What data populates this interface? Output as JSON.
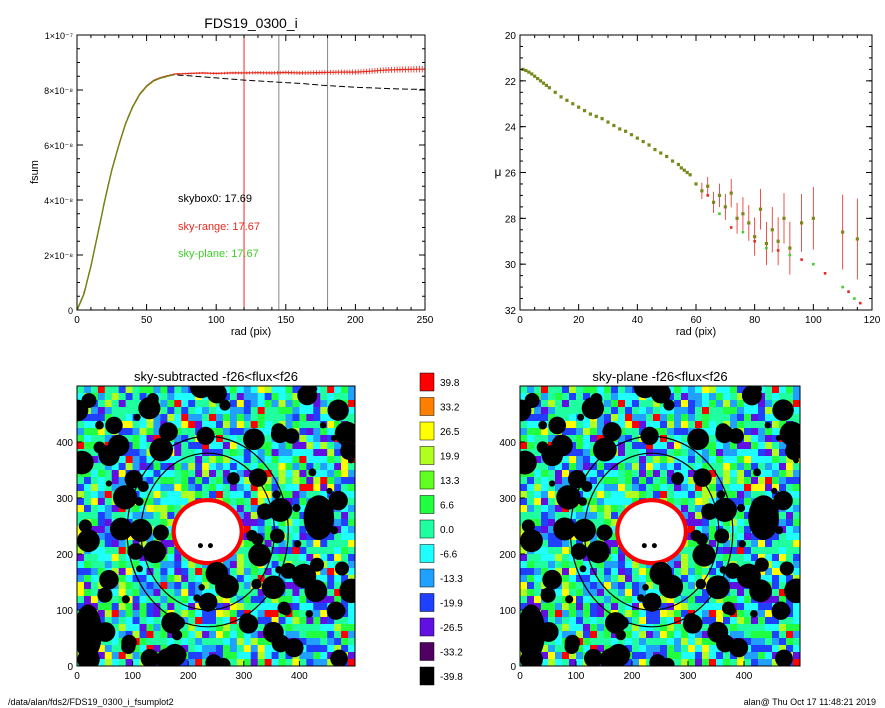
{
  "footer": {
    "path": "/data/alan/fds2/FDS19_0300_i_fsumplot2",
    "stamp": "alan@  Thu Oct 17 11:48:21 2019"
  },
  "colors": {
    "black_curve": "#000000",
    "red_curve": "#e8281e",
    "green_curve": "#3fcf28",
    "sky_lines_red": "#e8281e",
    "sky_lines_gray": "#888888",
    "mask": "#000000"
  },
  "chart_data": [
    {
      "type": "line",
      "title": "FDS19_0300_i",
      "xlabel": "rad (pix)",
      "ylabel": "fsum",
      "xlim": [
        0,
        250
      ],
      "ylim": [
        0,
        1e-07
      ],
      "xticks": [
        "0",
        "50",
        "100",
        "150",
        "200",
        "250"
      ],
      "yticks": [
        "0",
        "2×10⁻⁸",
        "4×10⁻⁸",
        "6×10⁻⁸",
        "8×10⁻⁸",
        "1×10⁻⁷"
      ],
      "vertical_lines": [
        120,
        145,
        180
      ],
      "annotations": [
        {
          "text": "skybox0: 17.69",
          "color": "#000000"
        },
        {
          "text": "sky-range: 17.67",
          "color": "#e8281e"
        },
        {
          "text": "sky-plane: 17.67",
          "color": "#3fcf28"
        }
      ],
      "series": [
        {
          "x": [
            0,
            5,
            10,
            15,
            20,
            25,
            30,
            35,
            40,
            45,
            50,
            55,
            60,
            65,
            70,
            80,
            90,
            100,
            110,
            120,
            130,
            140,
            150,
            160,
            170,
            180,
            190,
            200,
            210,
            220,
            230,
            240,
            250
          ],
          "values": [
            0,
            6e-09,
            1.6e-08,
            2.8e-08,
            4e-08,
            5.1e-08,
            6e-08,
            6.8e-08,
            7.4e-08,
            7.85e-08,
            8.15e-08,
            8.35e-08,
            8.45e-08,
            8.52e-08,
            8.55e-08,
            8.52e-08,
            8.48e-08,
            8.44e-08,
            8.4e-08,
            8.36e-08,
            8.33e-08,
            8.3e-08,
            8.27e-08,
            8.24e-08,
            8.2e-08,
            8.16e-08,
            8.13e-08,
            8.1e-08,
            8.08e-08,
            8.06e-08,
            8.04e-08,
            8.03e-08,
            8.02e-08
          ]
        },
        {
          "x": [
            0,
            5,
            10,
            15,
            20,
            25,
            30,
            35,
            40,
            45,
            50,
            55,
            60,
            65,
            70,
            80,
            90,
            100,
            110,
            120,
            130,
            140,
            150,
            160,
            170,
            180,
            190,
            200,
            210,
            220,
            230,
            240,
            250
          ],
          "values": [
            0,
            6e-09,
            1.6e-08,
            2.8e-08,
            4e-08,
            5.1e-08,
            6e-08,
            6.8e-08,
            7.4e-08,
            7.85e-08,
            8.15e-08,
            8.35e-08,
            8.45e-08,
            8.52e-08,
            8.58e-08,
            8.6e-08,
            8.62e-08,
            8.6e-08,
            8.62e-08,
            8.62e-08,
            8.63e-08,
            8.62e-08,
            8.64e-08,
            8.62e-08,
            8.63e-08,
            8.64e-08,
            8.65e-08,
            8.65e-08,
            8.68e-08,
            8.72e-08,
            8.74e-08,
            8.75e-08,
            8.76e-08
          ]
        }
      ]
    },
    {
      "type": "scatter",
      "title": "",
      "xlabel": "rad (pix)",
      "ylabel": "μ",
      "xlim": [
        0,
        120
      ],
      "ylim": [
        32,
        20
      ],
      "xticks": [
        "0",
        "20",
        "40",
        "60",
        "80",
        "100",
        "120"
      ],
      "yticks": [
        "20",
        "22",
        "24",
        "26",
        "28",
        "30",
        "32"
      ],
      "series": [
        {
          "x": [
            1,
            2,
            3,
            4,
            5,
            6,
            7,
            8,
            9,
            10,
            12,
            14,
            16,
            18,
            20,
            22,
            24,
            26,
            28,
            30,
            32,
            34,
            36,
            38,
            40,
            42,
            44,
            46,
            48,
            50,
            52,
            54,
            55,
            56,
            57,
            58,
            60,
            62,
            64,
            66,
            68,
            70,
            72,
            74,
            76,
            78,
            80,
            82,
            84,
            86,
            88,
            90,
            92,
            96,
            100,
            110,
            115
          ],
          "values": [
            21.5,
            21.55,
            21.62,
            21.7,
            21.8,
            21.9,
            22.0,
            22.1,
            22.2,
            22.3,
            22.5,
            22.7,
            22.85,
            23.0,
            23.15,
            23.3,
            23.45,
            23.55,
            23.65,
            23.8,
            23.95,
            24.1,
            24.2,
            24.35,
            24.5,
            24.65,
            24.8,
            25.0,
            25.15,
            25.3,
            25.5,
            25.65,
            25.8,
            25.9,
            26.0,
            26.1,
            26.5,
            26.8,
            26.6,
            27.3,
            27.0,
            27.5,
            26.9,
            28.0,
            27.8,
            28.2,
            28.8,
            27.6,
            29.1,
            28.5,
            29.0,
            28.0,
            29.3,
            28.2,
            28.0,
            28.6,
            28.9
          ]
        },
        {
          "x": [
            64,
            68,
            72,
            76,
            80,
            84,
            88,
            92,
            96,
            100,
            104,
            110,
            112,
            114,
            116
          ],
          "values": [
            27.0,
            27.8,
            28.4,
            28.6,
            29.0,
            29.3,
            29.4,
            29.6,
            29.8,
            30.0,
            30.4,
            31.0,
            31.2,
            31.5,
            31.7
          ]
        }
      ]
    },
    {
      "type": "heatmap",
      "title": "sky-subtracted -f26<flux<f26",
      "xlim": [
        0,
        500
      ],
      "ylim": [
        0,
        500
      ],
      "xticks": [
        "0",
        "100",
        "200",
        "300",
        "400"
      ],
      "yticks": [
        "0",
        "100",
        "200",
        "300",
        "400"
      ]
    },
    {
      "type": "heatmap",
      "title": "sky-plane -f26<flux<f26",
      "xlim": [
        0,
        500
      ],
      "ylim": [
        0,
        500
      ],
      "xticks": [
        "0",
        "100",
        "200",
        "300",
        "400"
      ],
      "yticks": [
        "0",
        "100",
        "200",
        "300",
        "400"
      ]
    }
  ],
  "colorbar": {
    "labels": [
      "39.8",
      "33.2",
      "26.5",
      "19.9",
      "13.3",
      "6.6",
      "0.0",
      "-6.6",
      "-13.3",
      "-19.9",
      "-26.5",
      "-33.2",
      "-39.8"
    ],
    "colors": [
      "#ff0000",
      "#ff8000",
      "#ffff00",
      "#b0ff20",
      "#60ff20",
      "#20ff40",
      "#20ffa0",
      "#20ffff",
      "#20a0ff",
      "#2040ff",
      "#6010e0",
      "#500060",
      "#000000"
    ]
  }
}
